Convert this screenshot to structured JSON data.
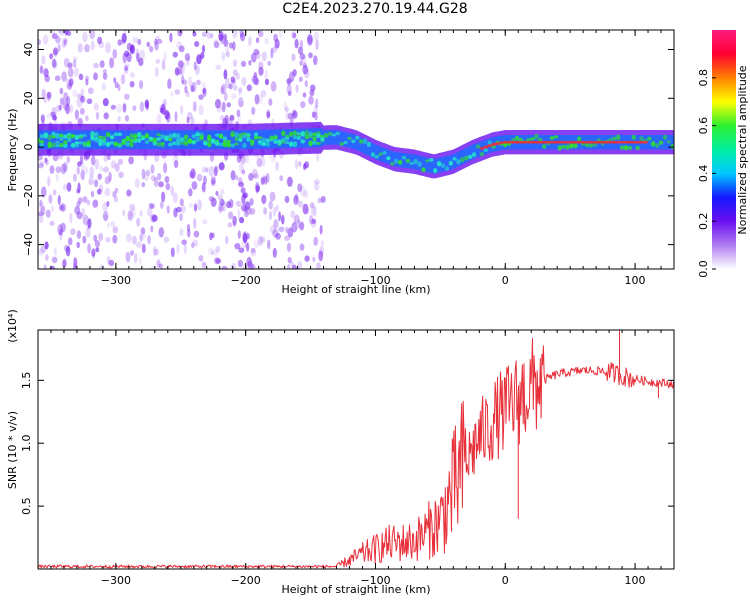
{
  "title": "C2E4.2023.270.19.44.G28",
  "colors": {
    "noise": "#8a3cf0",
    "band_outer": "#6a10f0",
    "band_mid": "#1a6cff",
    "band_core": "#22e6c8",
    "band_hot": "#30e030",
    "peak": "#e8303a",
    "snr_line": "#e8303a"
  },
  "chart_data": [
    {
      "type": "heatmap",
      "title": "",
      "xlabel": "Height of straight line (km)",
      "ylabel": "Frequency (Hz)",
      "xlim": [
        -360,
        130
      ],
      "ylim": [
        -50,
        48
      ],
      "xticks": [
        -300,
        -200,
        -100,
        0,
        100
      ],
      "yticks": [
        40,
        20,
        0,
        -20,
        -40
      ],
      "colorbar": {
        "label": "Normalized spectral amplitude",
        "range": [
          0,
          1
        ],
        "ticks": [
          "0.0",
          "0.2",
          "0.4",
          "0.6",
          "0.8"
        ],
        "colormap": [
          "#ffffff",
          "#b07cf2",
          "#6a10f0",
          "#1418ff",
          "#00c8ff",
          "#00f0a0",
          "#2ef02e",
          "#ffff00",
          "#ff8000",
          "#ff0030",
          "#ff1a80"
        ]
      },
      "band_center": [
        {
          "x": -360,
          "y": 3
        },
        {
          "x": -200,
          "y": 3
        },
        {
          "x": -130,
          "y": 4
        },
        {
          "x": -115,
          "y": 2
        },
        {
          "x": -100,
          "y": -2
        },
        {
          "x": -85,
          "y": -5
        },
        {
          "x": -70,
          "y": -6
        },
        {
          "x": -55,
          "y": -8
        },
        {
          "x": -40,
          "y": -6
        },
        {
          "x": -25,
          "y": -2
        },
        {
          "x": -10,
          "y": 1
        },
        {
          "x": 0,
          "y": 2
        },
        {
          "x": 130,
          "y": 2
        }
      ]
    },
    {
      "type": "line",
      "title": "",
      "xlabel": "Height of straight line (km)",
      "ylabel": "SNR (10 * v/v)",
      "y_multiplier": "(x10⁴)",
      "xlim": [
        -360,
        130
      ],
      "ylim": [
        0,
        1.9
      ],
      "xticks": [
        -300,
        -200,
        -100,
        0,
        100
      ],
      "yticks": [
        "0.5",
        "1.0",
        "1.5"
      ],
      "series_envelope": [
        {
          "x": -360,
          "y": 0.02
        },
        {
          "x": -200,
          "y": 0.02
        },
        {
          "x": -130,
          "y": 0.02
        },
        {
          "x": -110,
          "y": 0.12
        },
        {
          "x": -90,
          "y": 0.2
        },
        {
          "x": -70,
          "y": 0.22
        },
        {
          "x": -50,
          "y": 0.38
        },
        {
          "x": -35,
          "y": 0.75
        },
        {
          "x": -20,
          "y": 1.05
        },
        {
          "x": -5,
          "y": 1.22
        },
        {
          "x": 10,
          "y": 1.35
        },
        {
          "x": 25,
          "y": 1.48
        },
        {
          "x": 40,
          "y": 1.55
        },
        {
          "x": 60,
          "y": 1.58
        },
        {
          "x": 80,
          "y": 1.57
        },
        {
          "x": 95,
          "y": 1.52
        },
        {
          "x": 110,
          "y": 1.49
        },
        {
          "x": 130,
          "y": 1.47
        }
      ],
      "annotations": [
        {
          "x": 10,
          "y": 0.4
        },
        {
          "x": 88,
          "y": 1.9
        },
        {
          "x": 118,
          "y": 1.36
        }
      ]
    }
  ]
}
